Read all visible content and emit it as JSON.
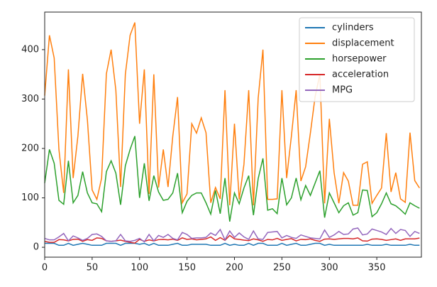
{
  "chart_data": {
    "type": "line",
    "x": [
      0,
      5,
      10,
      15,
      20,
      25,
      30,
      35,
      40,
      45,
      50,
      55,
      60,
      65,
      70,
      75,
      80,
      85,
      90,
      95,
      100,
      105,
      110,
      115,
      120,
      125,
      130,
      135,
      140,
      145,
      150,
      155,
      160,
      165,
      170,
      175,
      180,
      185,
      190,
      195,
      200,
      205,
      210,
      215,
      220,
      225,
      230,
      235,
      240,
      245,
      250,
      255,
      260,
      265,
      270,
      275,
      280,
      285,
      290,
      295,
      300,
      305,
      310,
      315,
      320,
      325,
      330,
      335,
      340,
      345,
      350,
      355,
      360,
      365,
      370,
      375,
      380,
      385,
      390,
      395
    ],
    "xlim": [
      0,
      397
    ],
    "xticks": [
      0,
      50,
      100,
      150,
      200,
      250,
      300,
      350
    ],
    "ylim": [
      -20,
      476
    ],
    "yticks": [
      0,
      100,
      200,
      300,
      400
    ],
    "legend": "upper right",
    "series": [
      {
        "name": "cylinders",
        "color": "#1f77b4",
        "values": [
          8,
          8,
          8,
          4,
          4,
          8,
          4,
          6,
          8,
          6,
          4,
          4,
          4,
          8,
          8,
          8,
          4,
          8,
          8,
          8,
          6,
          8,
          4,
          8,
          4,
          4,
          4,
          6,
          8,
          4,
          4,
          6,
          6,
          6,
          6,
          4,
          4,
          4,
          8,
          4,
          6,
          4,
          4,
          8,
          4,
          8,
          8,
          4,
          4,
          4,
          8,
          4,
          6,
          8,
          4,
          4,
          6,
          8,
          8,
          4,
          6,
          4,
          4,
          4,
          4,
          4,
          4,
          4,
          6,
          4,
          4,
          4,
          6,
          4,
          4,
          4,
          4,
          6,
          4,
          4
        ]
      },
      {
        "name": "displacement",
        "color": "#ff7f0e",
        "values": [
          307,
          429,
          383,
          198,
          110,
          360,
          140,
          225,
          351,
          258,
          116,
          97,
          140,
          351,
          400,
          318,
          122,
          350,
          429,
          455,
          250,
          360,
          108,
          350,
          121,
          198,
          122,
          225,
          304,
          90,
          108,
          250,
          231,
          262,
          232,
          90,
          121,
          98,
          318,
          85,
          250,
          97,
          168,
          318,
          85,
          302,
          400,
          97,
          97,
          98,
          318,
          140,
          225,
          318,
          134,
          163,
          231,
          305,
          350,
          89,
          260,
          151,
          89,
          151,
          134,
          85,
          85,
          168,
          173,
          89,
          105,
          120,
          231,
          112,
          151,
          98,
          91,
          232,
          135,
          120
        ]
      },
      {
        "name": "horsepower",
        "color": "#2ca02c",
        "values": [
          130,
          198,
          170,
          95,
          87,
          175,
          90,
          105,
          153,
          110,
          90,
          88,
          72,
          153,
          175,
          150,
          86,
          165,
          198,
          225,
          100,
          170,
          94,
          145,
          112,
          95,
          97,
          110,
          150,
          70,
          93,
          105,
          110,
          110,
          90,
          67,
          115,
          68,
          140,
          52,
          110,
          88,
          120,
          145,
          65,
          139,
          180,
          75,
          78,
          68,
          140,
          86,
          100,
          140,
          96,
          125,
          105,
          130,
          155,
          60,
          110,
          90,
          70,
          84,
          90,
          65,
          70,
          116,
          115,
          62,
          70,
          88,
          110,
          88,
          84,
          76,
          67,
          90,
          84,
          79
        ]
      },
      {
        "name": "acceleration",
        "color": "#d62728",
        "values": [
          12,
          10,
          10,
          15.5,
          15,
          13,
          16,
          16.5,
          12,
          15.5,
          14,
          19,
          18,
          13,
          12,
          13,
          14.5,
          12,
          10,
          8.5,
          16,
          12,
          15,
          13,
          15.5,
          16,
          15,
          16.5,
          14,
          19,
          16,
          17,
          15,
          16,
          17,
          21,
          14,
          19.5,
          14,
          24,
          17,
          16,
          14.5,
          13.5,
          17,
          15,
          12,
          16,
          15,
          18,
          14,
          16,
          17.5,
          13,
          16,
          15.5,
          17,
          14,
          12,
          16.5,
          17,
          16,
          17,
          18,
          18,
          17,
          19,
          13,
          12.5,
          16.5,
          17,
          16,
          14,
          15.5,
          17,
          14,
          17,
          17,
          17,
          18.6
        ]
      },
      {
        "name": "MPG",
        "color": "#9467bd",
        "values": [
          18,
          15,
          15,
          21,
          28,
          13,
          23,
          19,
          14,
          18,
          26,
          27,
          22,
          13,
          12,
          13,
          26,
          13,
          12,
          14,
          18,
          11,
          26,
          13,
          24,
          20,
          26,
          18,
          15,
          30,
          26,
          18,
          19,
          19,
          20,
          29,
          24,
          36,
          15,
          33,
          20,
          29,
          21,
          16,
          33,
          17,
          16,
          30,
          31,
          32,
          19,
          24,
          20,
          18,
          25,
          22,
          19,
          18,
          17,
          35,
          20,
          25,
          32,
          26,
          27,
          37,
          39,
          25,
          27,
          37,
          34,
          31,
          26,
          38,
          28,
          36,
          34,
          22,
          32,
          28
        ]
      }
    ]
  }
}
